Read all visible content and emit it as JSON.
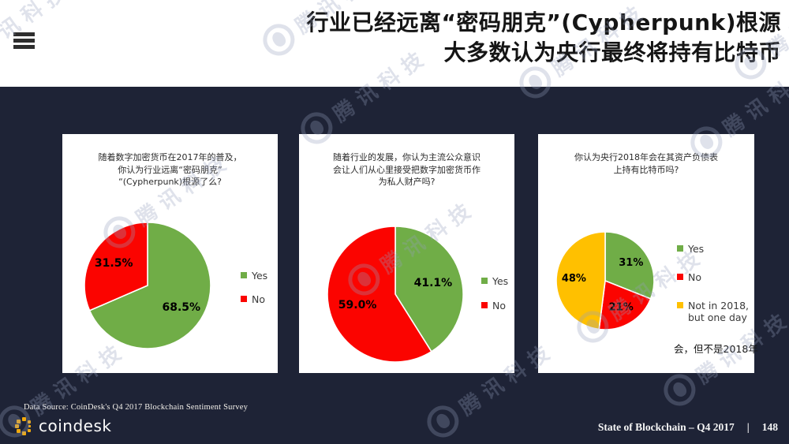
{
  "header": {
    "title_lines": [
      "行业已经远离“密码朋克”(Cypherpunk)根源",
      "大多数认为央行最终将持有比特币"
    ],
    "menu_icon": "hamburger-menu"
  },
  "watermark": {
    "text": "腾讯科技",
    "logo": "tencent-tech-circle-logo"
  },
  "colors": {
    "background": "#1e2336",
    "header_background": "#ffffff",
    "title_text": "#151515",
    "pie_green": "#70ad47",
    "pie_red": "#fb0400",
    "pie_yellow": "#ffc000",
    "coindesk_gold": "#f2a90b",
    "footer_text": "#f5f5f5"
  },
  "chart_data": [
    {
      "type": "pie",
      "title_lines": [
        "随着数字加密货币在2017年的普及，",
        "你认为行业远离“密码朋克”",
        "“(Cypherpunk)根源了么?"
      ],
      "legend_position": "right",
      "slices": [
        {
          "name": "Yes",
          "value": 68.5,
          "label": "68.5%",
          "color": "#70ad47"
        },
        {
          "name": "No",
          "value": 31.5,
          "label": "31.5%",
          "color": "#fb0400"
        }
      ]
    },
    {
      "type": "pie",
      "title_lines": [
        "随着行业的发展，你认为主流公众意识",
        "会让人们从心里接受把数字加密货币作",
        "为私人财产吗?"
      ],
      "legend_position": "right",
      "slices": [
        {
          "name": "Yes",
          "value": 41.1,
          "label": "41.1%",
          "color": "#70ad47"
        },
        {
          "name": "No",
          "value": 59.0,
          "label": "59.0%",
          "color": "#fb0400"
        }
      ]
    },
    {
      "type": "pie",
      "title_lines": [
        "你认为央行2018年会在其资产负债表",
        "上持有比特币吗?"
      ],
      "legend_position": "right",
      "annotation": "会，但不是2018年",
      "slices": [
        {
          "name": "Yes",
          "value": 31,
          "label": "31%",
          "color": "#70ad47"
        },
        {
          "name": "No",
          "value": 21,
          "label": "21%",
          "color": "#fb0400"
        },
        {
          "name": "Not in 2018, but one day",
          "value": 48,
          "label": "48%",
          "color": "#ffc000"
        }
      ]
    }
  ],
  "footer": {
    "data_source": "Data Source: CoinDesk's Q4 2017 Blockchain Sentiment Survey",
    "logo_text": "coindesk",
    "report_title": "State of Blockchain – Q4 2017",
    "separator": "|",
    "page_number": "148"
  }
}
